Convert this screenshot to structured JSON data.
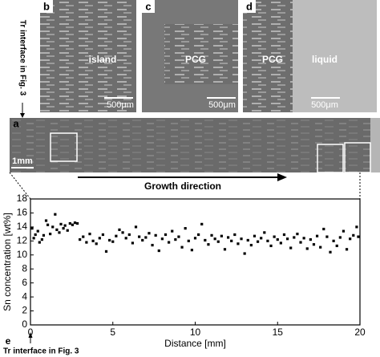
{
  "chart_data": {
    "type": "scatter",
    "x_label": "Distance [mm]",
    "y_label": "Sn concentration [wt%]",
    "xlim": [
      0,
      20
    ],
    "ylim": [
      0,
      18
    ],
    "xticks": [
      0,
      5,
      10,
      15,
      20
    ],
    "yticks": [
      0,
      2,
      4,
      6,
      8,
      10,
      12,
      14,
      16,
      18
    ],
    "color": "#000000",
    "x": [
      0.1,
      0.2,
      0.3,
      0.45,
      0.55,
      0.7,
      0.8,
      0.95,
      1.05,
      1.2,
      1.35,
      1.5,
      1.6,
      1.75,
      1.85,
      2.0,
      2.1,
      2.25,
      2.4,
      2.55,
      2.7,
      2.85,
      3.0,
      3.2,
      3.4,
      3.6,
      3.8,
      4.0,
      4.2,
      4.4,
      4.6,
      4.8,
      5.0,
      5.2,
      5.4,
      5.6,
      5.8,
      6.0,
      6.2,
      6.4,
      6.6,
      6.8,
      7.0,
      7.2,
      7.4,
      7.6,
      7.8,
      8.0,
      8.2,
      8.4,
      8.6,
      8.8,
      9.0,
      9.2,
      9.4,
      9.6,
      9.8,
      10.0,
      10.2,
      10.4,
      10.6,
      10.8,
      11.0,
      11.2,
      11.4,
      11.6,
      11.8,
      12.0,
      12.2,
      12.4,
      12.6,
      12.8,
      13.0,
      13.2,
      13.4,
      13.6,
      13.8,
      14.0,
      14.2,
      14.4,
      14.6,
      14.8,
      15.0,
      15.2,
      15.4,
      15.6,
      15.8,
      16.0,
      16.2,
      16.4,
      16.6,
      16.8,
      17.0,
      17.2,
      17.4,
      17.6,
      17.8,
      18.0,
      18.2,
      18.4,
      18.6,
      18.8,
      19.0,
      19.2,
      19.4,
      19.6,
      19.8,
      19.9
    ],
    "values": [
      13.8,
      12.4,
      12.9,
      13.4,
      11.8,
      12.2,
      12.8,
      14.9,
      14.3,
      13.0,
      14.0,
      15.8,
      13.6,
      13.2,
      14.4,
      13.8,
      14.2,
      13.5,
      14.5,
      14.3,
      14.6,
      14.5,
      12.2,
      12.6,
      11.8,
      13.0,
      12.0,
      11.6,
      12.4,
      12.9,
      10.5,
      12.1,
      11.9,
      12.7,
      13.6,
      13.2,
      12.4,
      12.9,
      11.7,
      14.0,
      12.6,
      12.1,
      12.5,
      13.1,
      11.4,
      12.8,
      10.6,
      12.3,
      12.9,
      11.8,
      13.4,
      12.2,
      12.6,
      11.1,
      13.8,
      12.0,
      10.7,
      12.4,
      12.9,
      14.4,
      12.1,
      11.5,
      12.8,
      12.3,
      11.9,
      12.7,
      10.8,
      12.5,
      12.0,
      12.9,
      11.6,
      12.3,
      10.2,
      12.1,
      11.4,
      12.7,
      11.9,
      12.4,
      13.2,
      12.0,
      11.3,
      12.6,
      12.2,
      11.7,
      12.9,
      12.3,
      11.0,
      12.5,
      13.0,
      11.8,
      12.4,
      10.9,
      12.2,
      11.5,
      12.7,
      11.1,
      13.7,
      12.6,
      10.4,
      12.0,
      11.3,
      12.5,
      13.4,
      10.8,
      12.3,
      12.8,
      14.0,
      12.6
    ]
  },
  "figure": {
    "top_note": "Tr interface in Fig. 3",
    "label_b": "b",
    "text_b": "island",
    "scale_b": "500μm",
    "label_c": "c",
    "text_c": "PCG",
    "scale_c": "500μm",
    "label_d": "d",
    "text_d1": "PCG",
    "text_d2": "liquid",
    "scale_d": "500μm",
    "label_a": "a",
    "scale_a": "1mm",
    "arrow_label": "Growth direction",
    "label_e": "e",
    "bottom_note": "Tr interface in Fig. 3"
  }
}
